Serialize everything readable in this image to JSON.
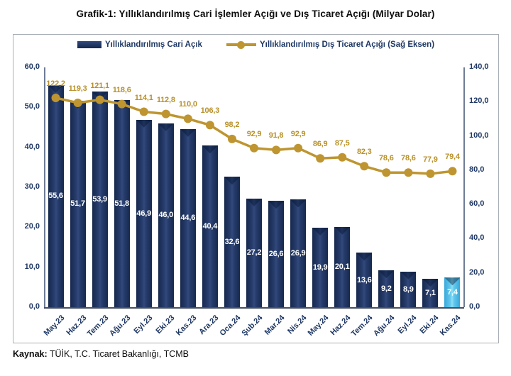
{
  "title": "Grafik-1: Yıllıklandırılmış Cari İşlemler Açığı ve Dış Ticaret Açığı (Milyar Dolar)",
  "source_note": {
    "label": "Kaynak:",
    "text": " TÜİK, T.C. Ticaret Bakanlığı, TCMB"
  },
  "legend": [
    {
      "label": "Yıllıklandırılmış Cari Açık",
      "type": "bar",
      "color": "#1F3864"
    },
    {
      "label": "Yıllıklandırılmış Dış Ticaret Açığı (Sağ Eksen)",
      "type": "line",
      "color": "#BE9530"
    }
  ],
  "colors": {
    "bar_navy": "#1F3864",
    "bar_highlight_light_blue": "#56C2EA",
    "line_gold": "#BE9530",
    "line_label_gold": "#B8912B",
    "axis_text_navy": "#1F3864",
    "bar_value_text": "#FFFFFF"
  },
  "chart_data": {
    "type": "bar",
    "subtype": "bar-line combo, dual axis",
    "grid": "off",
    "legend_position": "top-center",
    "decimal_separator": ",",
    "categories": [
      "May.23",
      "Haz.23",
      "Tem.23",
      "Ağu.23",
      "Eyl.23",
      "Eki.23",
      "Kas.23",
      "Ara.23",
      "Oca.24",
      "Şub.24",
      "Mar.24",
      "Nis.24",
      "May.24",
      "Haz.24",
      "Tem.24",
      "Ağu.24",
      "Eyl.24",
      "Eki.24",
      "Kas.24"
    ],
    "series": [
      {
        "name": "Yıllıklandırılmış Cari Açık",
        "type": "bar",
        "axis": "left",
        "color": "#1F3864",
        "highlight_last_bar": true,
        "highlight_color": "#56C2EA",
        "values": [
          55.6,
          51.7,
          53.9,
          51.8,
          46.9,
          46.0,
          44.6,
          40.4,
          32.6,
          27.2,
          26.6,
          26.9,
          19.9,
          20.1,
          13.6,
          9.2,
          8.9,
          7.1,
          7.4
        ]
      },
      {
        "name": "Yıllıklandırılmış Dış Ticaret Açığı (Sağ Eksen)",
        "type": "line",
        "axis": "right",
        "color": "#BE9530",
        "values": [
          122.2,
          119.3,
          121.1,
          118.6,
          114.1,
          112.8,
          110.0,
          106.3,
          98.2,
          92.9,
          91.8,
          92.9,
          86.9,
          87.5,
          82.3,
          78.6,
          78.6,
          77.9,
          79.4
        ]
      }
    ],
    "left_axis": {
      "min": 0,
      "max": 60,
      "step": 10,
      "tick_labels": [
        "0,0",
        "10,0",
        "20,0",
        "30,0",
        "40,0",
        "50,0",
        "60,0"
      ]
    },
    "right_axis": {
      "min": 0,
      "max": 140,
      "step": 20,
      "tick_labels": [
        "0,0",
        "20,0",
        "40,0",
        "60,0",
        "80,0",
        "100,0",
        "120,0",
        "140,0"
      ]
    }
  }
}
